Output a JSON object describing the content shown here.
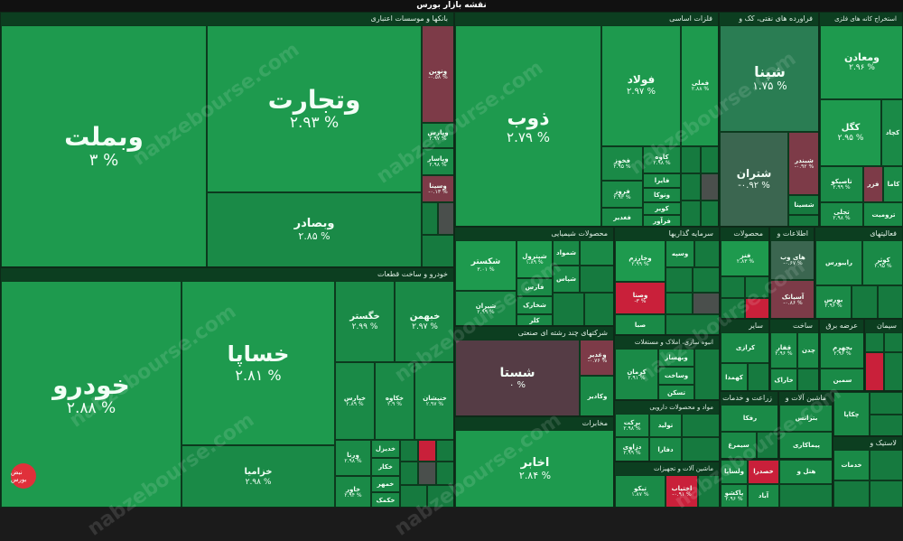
{
  "title": "نقشه بازار بورس",
  "watermark": "nabzebourse.com",
  "logo_text": "نبض بورس",
  "colors": {
    "positive": "#1e9a4e",
    "negative": "#c9203a",
    "neutral": "#4a4f4c"
  },
  "sectors": {
    "banks": "بانکها و موسسات اعتباری",
    "auto": "خودرو و ساخت قطعات",
    "basic_metals": "فلزات اساسی",
    "oil": "فراورده های نفتی، کک و",
    "metal_ore": "استخراج کانه های فلزی",
    "chemicals": "محصولات شیمیایی",
    "investment": "سرمایه گذاریها",
    "products": "محصولات",
    "it": "اطلاعات و",
    "activities": "فعالیتهای",
    "multi": "شرکتهای چند رشته ای صنعتی",
    "realestate": "انبوه سازی، املاک و مستغلات",
    "other": "سایر",
    "cement": "ساخت",
    "supply": "عرضه برق",
    "cement2": "سیمان",
    "pharma": "مواد و محصولات دارویی",
    "agri": "زراعت و خدمات",
    "machinery": "ماشین آلات و",
    "telecom": "مخابرات",
    "machinery2": "ماشین آلات و تجهیزات",
    "rubber": "لاستیک و"
  },
  "tiles": {
    "vbemellat": {
      "name": "وبملت",
      "value": "۳ %"
    },
    "vtejarat": {
      "name": "وتجارت",
      "value": "۲.۹۳ %"
    },
    "vbsader": {
      "name": "وبصادر",
      "value": "۲.۸۵ %"
    },
    "vnovin": {
      "name": "ونوین",
      "value": "-۰.۵۸ %"
    },
    "vpars": {
      "name": "وپارس",
      "value": "۲.۹۷ %"
    },
    "vkar": {
      "name": "وکار",
      "value": ""
    },
    "vbsar": {
      "name": "وپاسار",
      "value": "۲.۹۸ %"
    },
    "vsina": {
      "name": "وسینا",
      "value": "-۰.۱۳ %"
    },
    "khodro": {
      "name": "خودرو",
      "value": "۲.۸۸ %"
    },
    "khsapa": {
      "name": "خساپا",
      "value": "۲.۸۱ %"
    },
    "khgostar": {
      "name": "خگستر",
      "value": "۲.۹۹ %"
    },
    "khbahman": {
      "name": "خبهمن",
      "value": "۲.۹۷ %"
    },
    "khzamia": {
      "name": "خزامیا",
      "value": "۲.۹۸ %"
    },
    "khrikht": {
      "name": "خریخت",
      "value": ""
    },
    "kharis": {
      "name": "خپارس",
      "value": "۲.۸۹ %"
    },
    "khkaveh": {
      "name": "خکاوه",
      "value": "۲.۹ %"
    },
    "khnishan": {
      "name": "خنیشان",
      "value": "۲.۹۷ %"
    },
    "vrana": {
      "name": "ورنا",
      "value": "۲.۹۸ %"
    },
    "khdizel": {
      "name": "خدیزل",
      "value": ""
    },
    "khkar": {
      "name": "خکار",
      "value": ""
    },
    "khmehr": {
      "name": "خمهر",
      "value": ""
    },
    "khavor": {
      "name": "خاور",
      "value": "۲.۹۴ %"
    },
    "khtoos": {
      "name": "ختوقا",
      "value": ""
    },
    "khkamak": {
      "name": "خکمک",
      "value": ""
    },
    "zob": {
      "name": "ذوب",
      "value": "۲.۷۹ %"
    },
    "foolad": {
      "name": "فولاد",
      "value": "۲.۹۷ %"
    },
    "folai": {
      "name": "فملی",
      "value": "۲.۸۸ %"
    },
    "fkhouz": {
      "name": "فخوز",
      "value": "۲.۹۵ %"
    },
    "kaveh": {
      "name": "کاوه",
      "value": "۲.۹۸ %"
    },
    "fsazan": {
      "name": "فسازان",
      "value": ""
    },
    "fjar": {
      "name": "فایرا",
      "value": ""
    },
    "froz": {
      "name": "فروز",
      "value": "۲.۹۳ %"
    },
    "vsokan": {
      "name": "ونوکا",
      "value": ""
    },
    "kavir": {
      "name": "کویر",
      "value": ""
    },
    "fghadir": {
      "name": "فغدیر",
      "value": ""
    },
    "fravar": {
      "name": "فرآور",
      "value": ""
    },
    "shepna": {
      "name": "شپنا",
      "value": "۱.۷۵ %"
    },
    "shtran": {
      "name": "شتران",
      "value": "-۰.۹۲ %"
    },
    "shbandar": {
      "name": "شبندر",
      "value": "-۰.۹۲ %"
    },
    "shsina": {
      "name": "شسینا",
      "value": ""
    },
    "vmaaden": {
      "name": "ومعادن",
      "value": "۲.۹۶ %"
    },
    "kegol": {
      "name": "کگل",
      "value": "۲.۹۵ %"
    },
    "kchad": {
      "name": "کچاد",
      "value": ""
    },
    "ktamko": {
      "name": "کاسپین",
      "value": ""
    },
    "ktasiko": {
      "name": "تاصیکو",
      "value": "۲.۹۹ %"
    },
    "kfar": {
      "name": "فزر",
      "value": ""
    },
    "kama": {
      "name": "کاما",
      "value": ""
    },
    "tajli": {
      "name": "تجلی",
      "value": "۲.۹۸ %"
    },
    "tromit": {
      "name": "ترومیت",
      "value": ""
    },
    "shekastar": {
      "name": "شکستر",
      "value": "۳.۰۱ %"
    },
    "shpitrol": {
      "name": "شپترول",
      "value": "۱.۸۹ %"
    },
    "shfars": {
      "name": "فارس",
      "value": ""
    },
    "shiran": {
      "name": "شیران",
      "value": "۲.۹۹ %"
    },
    "shekhark": {
      "name": "شخارک",
      "value": ""
    },
    "shkaf": {
      "name": "کلر",
      "value": ""
    },
    "jam": {
      "name": "جم",
      "value": ""
    },
    "zagros": {
      "name": "زاگرس",
      "value": ""
    },
    "shmavad": {
      "name": "شمواد",
      "value": ""
    },
    "shpars": {
      "name": "شپاس",
      "value": ""
    },
    "vkhakhr": {
      "name": "وخارزم",
      "value": "۲.۹۹ %"
    },
    "vsayeh": {
      "name": "وسپه",
      "value": ""
    },
    "vsata": {
      "name": "وصنا",
      "value": "-۳ %"
    },
    "saba": {
      "name": "صبا",
      "value": ""
    },
    "fnnz": {
      "name": "فنز",
      "value": "۲.۸۳ %"
    },
    "haywap": {
      "name": "های وب",
      "value": "-۰.۶۷ %"
    },
    "asiatak": {
      "name": "آسیاتک",
      "value": "-۰.۸۶ %"
    },
    "kovar": {
      "name": "کوثر",
      "value": "۲.۹۵ %"
    },
    "kalaa": {
      "name": "کالا",
      "value": ""
    },
    "rayboors": {
      "name": "رایبورس",
      "value": ""
    },
    "boors": {
      "name": "بورس",
      "value": "۲.۹۶ %"
    },
    "atiyeh": {
      "name": "اتکای",
      "value": ""
    },
    "shsta": {
      "name": "شستا",
      "value": "۰ %"
    },
    "vghadir": {
      "name": "وغدیر",
      "value": "-۰.۷۶ %"
    },
    "vaghadir": {
      "name": "وکادیر",
      "value": ""
    },
    "akhaber": {
      "name": "اخابر",
      "value": "۲.۸۴ %"
    },
    "vtoos": {
      "name": "وبهساز",
      "value": ""
    },
    "kerman": {
      "name": "کرمان",
      "value": "۲.۹۱ %"
    },
    "vsakhat": {
      "name": "وساخت",
      "value": ""
    },
    "taskan": {
      "name": "تسکن",
      "value": ""
    },
    "thakhar": {
      "name": "ثفارس",
      "value": ""
    },
    "karazi": {
      "name": "کرازی",
      "value": ""
    },
    "kahda": {
      "name": "کهمدا",
      "value": ""
    },
    "ghafar": {
      "name": "قفار",
      "value": "۲.۹۶ %"
    },
    "kharak": {
      "name": "خاراک",
      "value": ""
    },
    "bjahan": {
      "name": "چدن",
      "value": ""
    },
    "simin": {
      "name": "سمین",
      "value": ""
    },
    "bzahrum": {
      "name": "بجهرم",
      "value": "۲.۹۶ %"
    },
    "barket": {
      "name": "برکت",
      "value": "۲.۹۸ %"
    },
    "tolid": {
      "name": "تولید",
      "value": ""
    },
    "dfara": {
      "name": "دفارا",
      "value": ""
    },
    "dzaravi": {
      "name": "دزاوی",
      "value": "۲.۹۹ %"
    },
    "ddana": {
      "name": "ددانا",
      "value": "۲.۹۵ %"
    },
    "tizkoo": {
      "name": "تیکو",
      "value": "۱.۸۷ %"
    },
    "akhteb": {
      "name": "اختیاب",
      "value": "-۰.۹۱ %"
    },
    "kharvan": {
      "name": "رفکا",
      "value": ""
    },
    "simorgh": {
      "name": "سیمرغ",
      "value": ""
    },
    "zobar": {
      "name": "وپارس",
      "value": ""
    },
    "vlasapa": {
      "name": "ولساپا",
      "value": ""
    },
    "vghadir2": {
      "name": "ولقدر",
      "value": ""
    },
    "pghesh": {
      "name": "پاکشو",
      "value": "۲.۹۶ %"
    },
    "btrans": {
      "name": "بترانس",
      "value": ""
    },
    "bkam": {
      "name": "بکام",
      "value": ""
    },
    "paricar": {
      "name": "پیماکاری",
      "value": ""
    },
    "khsra": {
      "name": "خصدرا",
      "value": ""
    },
    "hatl": {
      "name": "هتل و",
      "value": ""
    },
    "abad": {
      "name": "آباد",
      "value": ""
    },
    "chaka": {
      "name": "چکاپا",
      "value": ""
    },
    "khasmi": {
      "name": "خدمات",
      "value": ""
    },
    "bkheir": {
      "name": "بخیر",
      "value": ""
    }
  }
}
